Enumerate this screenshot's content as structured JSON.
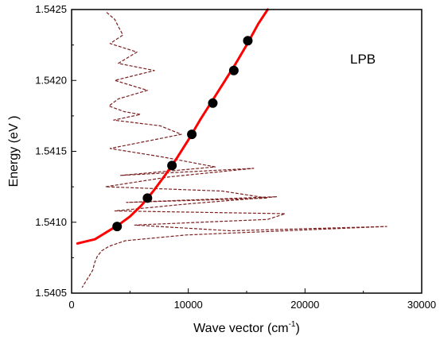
{
  "chart_data": {
    "type": "scatter",
    "title": "",
    "xlabel": "Wave vector (cm",
    "xlabel_sup": "-1",
    "xlabel_end": ")",
    "ylabel": "Energy (eV )",
    "xlim": [
      0,
      30000
    ],
    "ylim": [
      1.5405,
      1.5425
    ],
    "xticks": [
      0,
      10000,
      20000,
      30000
    ],
    "xtick_labels": [
      "0",
      "10000",
      "20000",
      "30000"
    ],
    "yticks": [
      1.5405,
      1.541,
      1.5415,
      1.542,
      1.5425
    ],
    "ytick_labels": [
      "1.5405",
      "1.5410",
      "1.5415",
      "1.5420",
      "1.5425"
    ],
    "annotation": "LPB",
    "grid": false,
    "colors": {
      "fit_curve": "#ff0000",
      "points": "#000000",
      "spectrum": "#7a1f1f"
    },
    "series": [
      {
        "kind": "points",
        "x": [
          3900,
          6500,
          8600,
          10300,
          12100,
          13900,
          15100
        ],
        "y": [
          1.54097,
          1.54117,
          1.5414,
          1.54162,
          1.54184,
          1.54207,
          1.54228
        ]
      },
      {
        "kind": "fit-curve",
        "x": [
          500,
          1000,
          2000,
          3000,
          4000,
          5000,
          6000,
          7000,
          8000,
          9000,
          10000,
          11000,
          12000,
          13000,
          14000,
          15000,
          16000,
          16800
        ],
        "y": [
          1.54085,
          1.54086,
          1.54088,
          1.54093,
          1.54098,
          1.54104,
          1.54112,
          1.54122,
          1.54133,
          1.54145,
          1.54158,
          1.54172,
          1.54185,
          1.54198,
          1.54211,
          1.54225,
          1.5424,
          1.5425
        ]
      },
      {
        "kind": "spectrum",
        "x": [
          3000,
          3700,
          4000,
          4400,
          3300,
          5600,
          4000,
          7100,
          3700,
          6500,
          4000,
          3200,
          4500,
          5900,
          3600,
          7600,
          9400,
          3300,
          7800,
          12300,
          4200,
          15600,
          8400,
          2900,
          12900,
          16800,
          4700,
          17600,
          10100,
          3700,
          18300,
          16800,
          5400,
          13600,
          27000,
          9800,
          4600,
          3200,
          2600,
          2200,
          2000,
          1800,
          1500,
          1200,
          900
        ],
        "y": [
          1.54248,
          1.54243,
          1.54238,
          1.54232,
          1.54226,
          1.5422,
          1.54212,
          1.54207,
          1.542,
          1.54193,
          1.54187,
          1.54182,
          1.54178,
          1.54176,
          1.54172,
          1.54168,
          1.54162,
          1.54152,
          1.54146,
          1.54139,
          1.54133,
          1.54138,
          1.54132,
          1.54125,
          1.54122,
          1.54117,
          1.54114,
          1.54118,
          1.54113,
          1.54108,
          1.54106,
          1.54102,
          1.54098,
          1.54094,
          1.54097,
          1.54091,
          1.54087,
          1.54083,
          1.5408,
          1.54076,
          1.54072,
          1.54066,
          1.54062,
          1.54058,
          1.54054
        ]
      }
    ]
  }
}
